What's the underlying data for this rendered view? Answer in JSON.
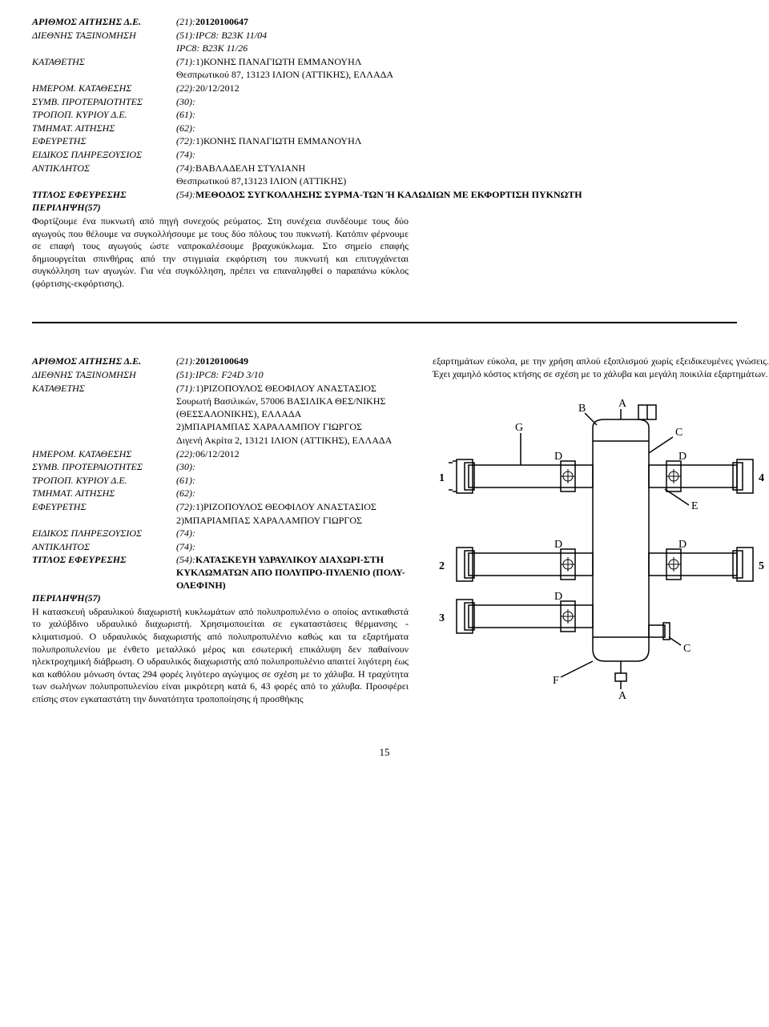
{
  "record1": {
    "fields": [
      {
        "label": "ΑΡΙΘΜΟΣ ΑΙΤΗΣΗΣ Δ.Ε.",
        "code": "(21):",
        "value": "20120100647",
        "bold": true,
        "labelBold": true
      },
      {
        "label": "ΔΙΕΘΝΗΣ ΤΑΞΙΝΟΜΗΣΗ",
        "code": "(51):",
        "value": "IPC8: B23K  11/04",
        "italic": true
      },
      {
        "label": "",
        "code": "",
        "value": "IPC8: B23K  11/26",
        "italic": true
      },
      {
        "label": "ΚΑΤΑΘΕΤΗΣ",
        "code": "(71):",
        "value": "1)ΚΟΝΗΣ ΠΑΝΑΓΙΩΤΗ ΕΜΜΑΝΟΥΗΛ"
      },
      {
        "label": "",
        "code": "",
        "value": "Θεσπρωτικού 87, 13123 ΙΛΙΟΝ (ΑΤΤΙΚΗΣ), ΕΛΛΑΔΑ"
      },
      {
        "label": "ΗΜΕΡΟΜ. ΚΑΤΑΘΕΣΗΣ",
        "code": "(22):",
        "value": "20/12/2012"
      },
      {
        "label": "ΣΥΜΒ. ΠΡΟΤΕΡΑΙΟΤΗΤΕΣ",
        "code": "(30):",
        "value": ""
      },
      {
        "label": "ΤΡΟΠΟΠ. ΚΥΡΙΟΥ Δ.Ε.",
        "code": "(61):",
        "value": ""
      },
      {
        "label": "ΤΜΗΜΑΤ. ΑΙΤΗΣΗΣ",
        "code": "(62):",
        "value": ""
      },
      {
        "label": "ΕΦΕΥΡΕΤΗΣ",
        "code": "(72):",
        "value": "1)ΚΟΝΗΣ ΠΑΝΑΓΙΩΤΗ ΕΜΜΑΝΟΥΗΛ"
      },
      {
        "label": "ΕΙΔΙΚΟΣ ΠΛΗΡΕΞΟΥΣΙΟΣ",
        "code": "(74):",
        "value": ""
      },
      {
        "label": "ΑΝΤΙΚΛΗΤΟΣ",
        "code": "(74):",
        "value": "ΒΑΒΛΑΔΕΛΗ ΣΤΥΛΙΑΝΗ"
      },
      {
        "label": "",
        "code": "",
        "value": "Θεσπρωτικού 87,13123 ΙΛΙΟΝ (ΑΤΤΙΚΗΣ)"
      },
      {
        "label": "ΤΙΤΛΟΣ ΕΦΕΥΡΕΣΗΣ",
        "code": "(54):",
        "value": "ΜΕΘΟΔΟΣ ΣΥΓΚΟΛΛΗΣΗΣ ΣΥΡΜΑ-ΤΩΝ Ή ΚΑΛΩΔΙΩΝ ΜΕ ΕΚΦΟΡΤΙΣΗ ΠΥΚΝΩΤΗ",
        "bold": true,
        "labelBold": true
      }
    ],
    "abstractLabel": "ΠΕΡΙΛΗΨΗ(57)",
    "abstract": "Φορτίζουμε ένα πυκνωτή από πηγή συνεχούς ρεύματος. Στη συνέχεια συνδέουμε τους δύο αγωγούς που θέλουμε να συγκολλήσουμε με τους δύο πόλους του πυκνωτή. Κατόπιν φέρνουμε σε επαφή τους αγωγούς ώστε ναπροκαλέσουμε βραχυκύκλωμα. Στο σημείο επαφής δημιουργείται σπινθήρας από την στιγμιαία εκφόρτιση του πυκνωτή και επιτυγχάνεται συγκόλληση των αγωγών. Για νέα συγκόλληση, πρέπει να επαναληφθεί ο παραπάνω κύκλος (φόρτισης-εκφόρτισης)."
  },
  "record2": {
    "fields": [
      {
        "label": "ΑΡΙΘΜΟΣ ΑΙΤΗΣΗΣ Δ.Ε.",
        "code": "(21):",
        "value": "20120100649",
        "bold": true,
        "labelBold": true
      },
      {
        "label": "ΔΙΕΘΝΗΣ ΤΑΞΙΝΟΜΗΣΗ",
        "code": "(51):",
        "value": "IPC8: F24D  3/10",
        "italic": true
      },
      {
        "label": "ΚΑΤΑΘΕΤΗΣ",
        "code": "(71):",
        "value": "1)ΡΙΖΟΠΟΥΛΟΣ ΘΕΟΦΙΛΟΥ ΑΝΑΣΤΑΣΙΟΣ"
      },
      {
        "label": "",
        "code": "",
        "value": "Σουρωτή Βασιλικών, 57006 ΒΑΣΙΛΙΚΑ ΘΕΣ/ΝΙΚΗΣ (ΘΕΣΣΑΛΟΝΙΚΗΣ), ΕΛΛΑΔΑ"
      },
      {
        "label": "",
        "code": "",
        "value": "2)ΜΠΑΡΙΑΜΠΑΣ ΧΑΡΑΛΑΜΠΟΥ ΓΙΩΡΓΟΣ"
      },
      {
        "label": "",
        "code": "",
        "value": "Διγενή Ακρίτα 2, 13121 ΙΛΙΟΝ (ΑΤΤΙΚΗΣ), ΕΛΛΑΔΑ"
      },
      {
        "label": "ΗΜΕΡΟΜ. ΚΑΤΑΘΕΣΗΣ",
        "code": "(22):",
        "value": "06/12/2012"
      },
      {
        "label": "ΣΥΜΒ. ΠΡΟΤΕΡΑΙΟΤΗΤΕΣ",
        "code": "(30):",
        "value": ""
      },
      {
        "label": "ΤΡΟΠΟΠ. ΚΥΡΙΟΥ Δ.Ε.",
        "code": "(61):",
        "value": ""
      },
      {
        "label": "ΤΜΗΜΑΤ. ΑΙΤΗΣΗΣ",
        "code": "(62):",
        "value": ""
      },
      {
        "label": "ΕΦΕΥΡΕΤΗΣ",
        "code": "(72):",
        "value": "1)ΡΙΖΟΠΟΥΛΟΣ ΘΕΟΦΙΛΟΥ ΑΝΑΣΤΑΣΙΟΣ"
      },
      {
        "label": "",
        "code": "",
        "value": "2)ΜΠΑΡΙΑΜΠΑΣ ΧΑΡΑΛΑΜΠΟΥ ΓΙΩΡΓΟΣ"
      },
      {
        "label": "ΕΙΔΙΚΟΣ ΠΛΗΡΕΞΟΥΣΙΟΣ",
        "code": "(74):",
        "value": ""
      },
      {
        "label": "ΑΝΤΙΚΛΗΤΟΣ",
        "code": "(74):",
        "value": ""
      },
      {
        "label": "ΤΙΤΛΟΣ ΕΦΕΥΡΕΣΗΣ",
        "code": "(54):",
        "value": "ΚΑΤΑΣΚΕΥΗ ΥΔΡΑΥΛΙΚΟΥ ΔΙΑΧΩΡΙ-ΣΤΗ ΚΥΚΛΩΜΑΤΩΝ ΑΠΟ ΠΟΛΥΠΡΟ-ΠΥΛΕΝΙΟ (ΠΟΛΥ-ΟΛΕΦΙΝΗ)",
        "bold": true,
        "labelBold": true
      }
    ],
    "abstractLabel": "ΠΕΡΙΛΗΨΗ(57)",
    "abstract": "Η κατασκευή υδραυλικού διαχωριστή κυκλωμάτων από πολυπροπυλένιο ο οποίος αντικαθιστά το χαλύβδινο υδραυλικό διαχωριστή. Χρησιμοποιείται σε εγκαταστάσεις θέρμανσης - κλιματισμού. Ο υδραυλικός διαχωριστής από πολυπροπυλένιο καθώς και τα εξαρτήματα πολυπροπυλενίου με ένθετο μεταλλικό μέρος και εσωτερική επικάλυψη δεν παθαίνουν ηλεκτροχημική διάβρωση. Ο υδραυλικός διαχωριστής από πολυπροπυλένιο απαιτεί λιγότερη έως και καθόλου μόνωση όντας 294 φορές λιγότερο αγώγιμος σε σχέση με το χάλυβα. Η τραχύτητα των σωλήνων πολυπροπυλενίου είναι μικρότερη κατά 6, 43 φορές από το χάλυβα. Προσφέρει επίσης στον εγκαταστάτη την δυνατότητα τροποποίησης ή προσθήκης",
    "rightText": "εξαρτημάτων εύκολα, με την χρήση απλού εξοπλισμού χωρίς εξειδικευμένες γνώσεις. Έχει χαμηλό κόστος κτήσης σε σχέση με το χάλυβα και μεγάλη ποικιλία εξαρτημάτων."
  },
  "figure": {
    "labels": {
      "A1": "A",
      "A2": "A",
      "B": "B",
      "C1": "C",
      "C2": "C",
      "D": "D",
      "E": "E",
      "F": "F",
      "G": "G"
    },
    "numbers": [
      "1",
      "2",
      "3",
      "4",
      "5"
    ],
    "stroke": "#000000",
    "fill": "#ffffff"
  },
  "pageNumber": "15"
}
